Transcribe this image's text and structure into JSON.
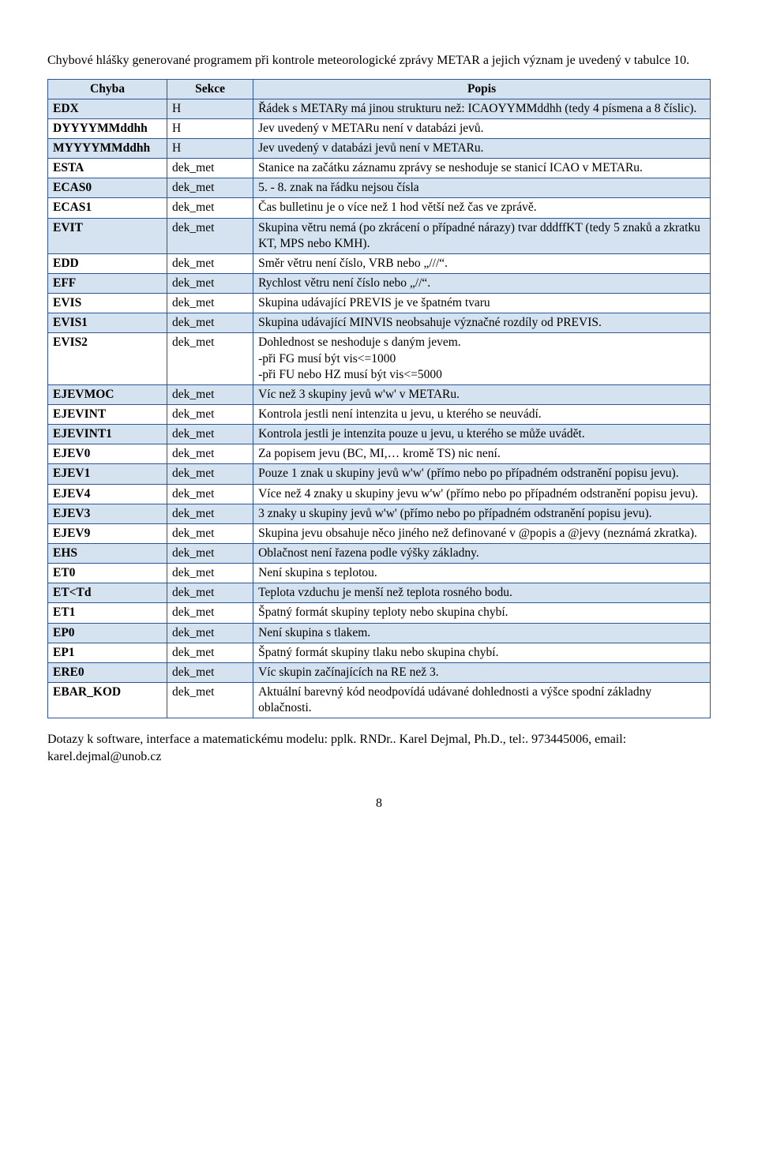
{
  "intro": "Chybové hlášky generované programem při kontrole meteorologické zprávy METAR a jejich význam je uvedený v tabulce 10.",
  "headers": {
    "c1": "Chyba",
    "c2": "Sekce",
    "c3": "Popis"
  },
  "rows": [
    {
      "c1": "EDX",
      "c2": "H",
      "c3": "Řádek s METARy má jinou strukturu než: ICAOYYMMddhh (tedy 4 písmena a 8 číslic)."
    },
    {
      "c1": "DYYYYMMddhh",
      "c2": "H",
      "c3": "Jev uvedený v METARu není v databázi jevů."
    },
    {
      "c1": "MYYYYMMddhh",
      "c2": "H",
      "c3": "Jev uvedený v databázi jevů není v METARu."
    },
    {
      "c1": "ESTA",
      "c2": "dek_met",
      "c3": "Stanice na začátku záznamu zprávy se neshoduje se stanicí ICAO v METARu."
    },
    {
      "c1": "ECAS0",
      "c2": "dek_met",
      "c3": "5. - 8. znak na řádku nejsou čísla"
    },
    {
      "c1": "ECAS1",
      "c2": "dek_met",
      "c3": "Čas bulletinu je o více než 1 hod větší než čas ve zprávě."
    },
    {
      "c1": "EVIT",
      "c2": "dek_met",
      "c3": "Skupina větru nemá (po zkrácení o případné nárazy) tvar dddffKT (tedy 5 znaků a zkratku KT, MPS nebo KMH)."
    },
    {
      "c1": "EDD",
      "c2": "dek_met",
      "c3": "Směr větru není číslo, VRB nebo „///“."
    },
    {
      "c1": "EFF",
      "c2": "dek_met",
      "c3": "Rychlost větru není číslo nebo „//“."
    },
    {
      "c1": "EVIS",
      "c2": "dek_met",
      "c3": "Skupina udávající PREVIS je ve špatném tvaru"
    },
    {
      "c1": "EVIS1",
      "c2": "dek_met",
      "c3": "Skupina udávající MINVIS neobsahuje význačné rozdíly od PREVIS."
    },
    {
      "c1": "EVIS2",
      "c2": "dek_met",
      "c3": "Dohlednost se neshoduje s daným jevem.\n-při FG musí být vis<=1000\n-při FU nebo HZ musí být vis<=5000"
    },
    {
      "c1": "EJEVMOC",
      "c2": "dek_met",
      "c3": "Víc než 3 skupiny jevů w'w' v METARu."
    },
    {
      "c1": "EJEVINT",
      "c2": "dek_met",
      "c3": "Kontrola jestli není intenzita u jevu, u kterého se neuvádí."
    },
    {
      "c1": "EJEVINT1",
      "c2": "dek_met",
      "c3": "Kontrola jestli je intenzita pouze u jevu, u kterého se může uvádět."
    },
    {
      "c1": "EJEV0",
      "c2": "dek_met",
      "c3": "Za popisem jevu (BC, MI,… kromě TS) nic není."
    },
    {
      "c1": "EJEV1",
      "c2": "dek_met",
      "c3": "Pouze 1 znak u skupiny jevů w'w' (přímo nebo po případném odstranění popisu jevu)."
    },
    {
      "c1": "EJEV4",
      "c2": "dek_met",
      "c3": "Více než 4 znaky u skupiny jevu w'w' (přímo nebo po případném odstranění popisu jevu)."
    },
    {
      "c1": "EJEV3",
      "c2": "dek_met",
      "c3": "3 znaky u skupiny jevů w'w' (přímo nebo po případném odstranění popisu jevu)."
    },
    {
      "c1": "EJEV9",
      "c2": "dek_met",
      "c3": "Skupina jevu obsahuje něco jiného než definované v @popis a @jevy (neznámá zkratka)."
    },
    {
      "c1": "EHS",
      "c2": "dek_met",
      "c3": "Oblačnost není řazena podle výšky základny."
    },
    {
      "c1": "ET0",
      "c2": "dek_met",
      "c3": "Není skupina s teplotou."
    },
    {
      "c1": "ET<Td",
      "c2": "dek_met",
      "c3": "Teplota vzduchu je menší než teplota rosného bodu."
    },
    {
      "c1": "ET1",
      "c2": "dek_met",
      "c3": "Špatný formát skupiny teploty nebo skupina chybí."
    },
    {
      "c1": "EP0",
      "c2": "dek_met",
      "c3": "Není skupina s tlakem."
    },
    {
      "c1": "EP1",
      "c2": "dek_met",
      "c3": "Špatný formát skupiny tlaku nebo skupina chybí."
    },
    {
      "c1": "ERE0",
      "c2": "dek_met",
      "c3": "Víc skupin začínajících na RE než 3."
    },
    {
      "c1": "EBAR_KOD",
      "c2": "dek_met",
      "c3": "Aktuální barevný kód neodpovídá udávané dohlednosti a výšce spodní základny oblačnosti."
    }
  ],
  "outro": "Dotazy k software, interface a matematickému modelu: pplk. RNDr.. Karel Dejmal, Ph.D., tel:. 973445006, email: karel.dejmal@unob.cz",
  "page_number": "8"
}
